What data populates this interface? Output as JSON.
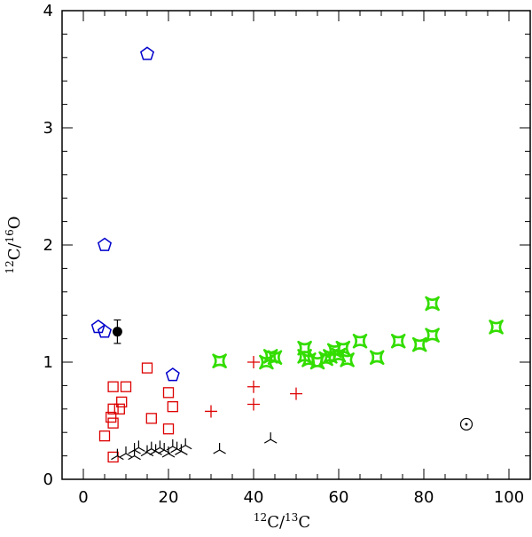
{
  "chart_data": {
    "type": "scatter",
    "title": "",
    "xlabel": {
      "sup1": "12",
      "base1": "C/",
      "sup2": "13",
      "base2": "C"
    },
    "ylabel": {
      "sup1": "12",
      "base1": "C/",
      "sup2": "16",
      "base2": "O"
    },
    "xlim": [
      -5,
      105
    ],
    "ylim": [
      0,
      4
    ],
    "x_ticks": [
      0,
      20,
      40,
      60,
      80,
      100
    ],
    "x_tick_labels": [
      "0",
      "20",
      "40",
      "60",
      "80",
      "100"
    ],
    "y_ticks": [
      0,
      1,
      2,
      3,
      4
    ],
    "y_tick_labels": [
      "0",
      "1",
      "2",
      "3",
      "4"
    ],
    "grid": false,
    "series": [
      {
        "name": "pentagons",
        "marker": "pentagon",
        "color": "#0000cc",
        "points": [
          [
            15,
            3.63
          ],
          [
            5,
            2.0
          ],
          [
            3.5,
            1.3
          ],
          [
            5,
            1.26
          ],
          [
            21,
            0.89
          ]
        ]
      },
      {
        "name": "filled-circle",
        "marker": "filled-circle",
        "color": "#000000",
        "points": [
          [
            8,
            1.26
          ]
        ],
        "error_y": [
          0.1
        ]
      },
      {
        "name": "squares",
        "marker": "square",
        "color": "#dd0000",
        "points": [
          [
            15,
            0.95
          ],
          [
            7,
            0.79
          ],
          [
            10,
            0.79
          ],
          [
            20,
            0.74
          ],
          [
            9,
            0.66
          ],
          [
            7,
            0.6
          ],
          [
            8.5,
            0.6
          ],
          [
            21,
            0.62
          ],
          [
            6.5,
            0.53
          ],
          [
            16,
            0.52
          ],
          [
            7,
            0.48
          ],
          [
            20,
            0.43
          ],
          [
            5,
            0.37
          ],
          [
            7,
            0.19
          ]
        ]
      },
      {
        "name": "plus",
        "marker": "plus",
        "color": "#dd0000",
        "points": [
          [
            40,
            1.0
          ],
          [
            40,
            0.79
          ],
          [
            40,
            0.64
          ],
          [
            50,
            0.73
          ],
          [
            30,
            0.58
          ]
        ]
      },
      {
        "name": "four-point-stars",
        "marker": "star4",
        "color": "#33dd00",
        "points": [
          [
            32,
            1.01
          ],
          [
            43,
            1.0
          ],
          [
            44,
            1.05
          ],
          [
            45,
            1.04
          ],
          [
            52,
            1.12
          ],
          [
            52,
            1.05
          ],
          [
            53,
            1.02
          ],
          [
            55,
            1.0
          ],
          [
            57,
            1.03
          ],
          [
            58,
            1.05
          ],
          [
            59,
            1.1
          ],
          [
            60,
            1.06
          ],
          [
            61,
            1.12
          ],
          [
            62,
            1.02
          ],
          [
            65,
            1.18
          ],
          [
            69,
            1.04
          ],
          [
            74,
            1.18
          ],
          [
            79,
            1.15
          ],
          [
            82,
            1.5
          ],
          [
            82,
            1.23
          ],
          [
            97,
            1.3
          ]
        ]
      },
      {
        "name": "tripods",
        "marker": "tripod",
        "color": "#000000",
        "points": [
          [
            8,
            0.2
          ],
          [
            10,
            0.22
          ],
          [
            12,
            0.25
          ],
          [
            12,
            0.2
          ],
          [
            13,
            0.27
          ],
          [
            15,
            0.23
          ],
          [
            16,
            0.26
          ],
          [
            17,
            0.24
          ],
          [
            18,
            0.27
          ],
          [
            19,
            0.25
          ],
          [
            20,
            0.22
          ],
          [
            21,
            0.28
          ],
          [
            22,
            0.26
          ],
          [
            23,
            0.24
          ],
          [
            24,
            0.29
          ],
          [
            32,
            0.25
          ],
          [
            44,
            0.34
          ]
        ]
      },
      {
        "name": "sun",
        "marker": "sun",
        "color": "#000000",
        "points": [
          [
            90,
            0.47
          ]
        ]
      }
    ]
  }
}
